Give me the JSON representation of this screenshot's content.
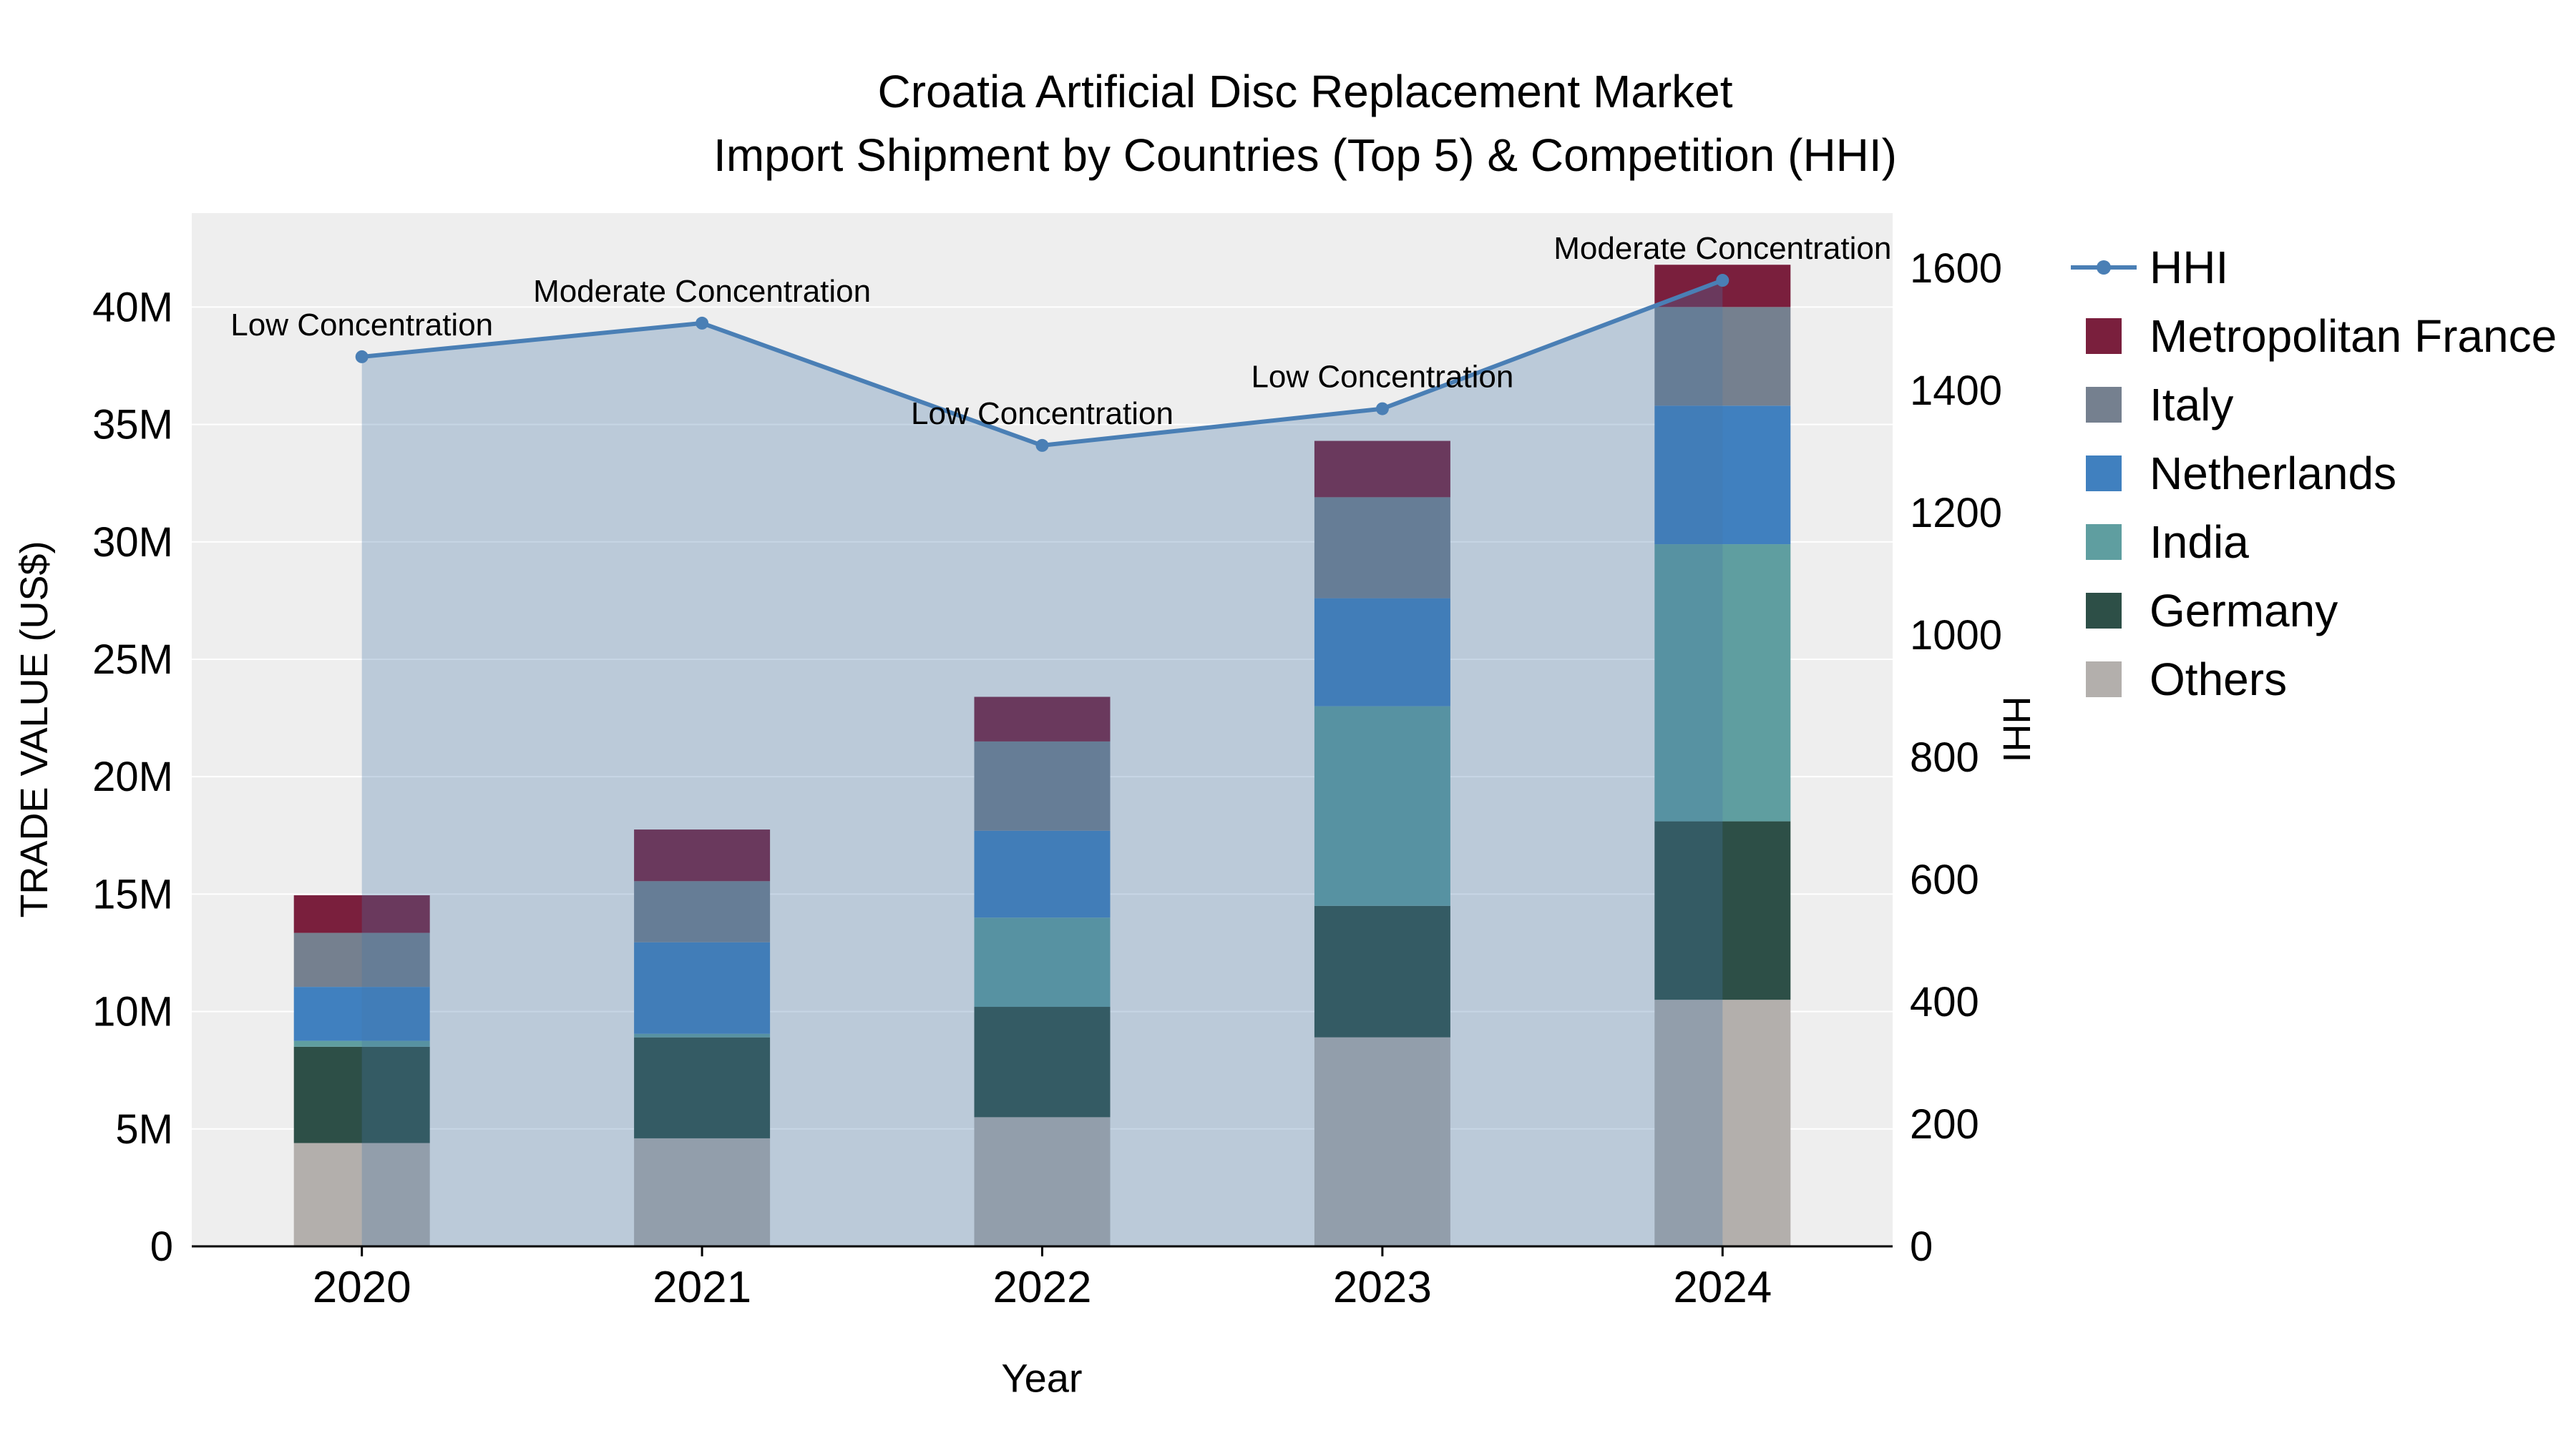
{
  "title": {
    "line1": "Croatia Artificial Disc Replacement Market",
    "line2": "Import Shipment by Countries (Top 5) & Competition (HHI)"
  },
  "axes": {
    "left_label": "TRADE VALUE (US$)",
    "right_label": "HHI",
    "x_label": "Year",
    "left_ticks": [
      "0",
      "5M",
      "10M",
      "15M",
      "20M",
      "25M",
      "30M",
      "35M",
      "40M"
    ],
    "right_ticks": [
      "0",
      "200",
      "400",
      "600",
      "800",
      "1000",
      "1200",
      "1400",
      "1600"
    ]
  },
  "chart_data": {
    "type": "bar",
    "subtype": "stacked-bars-with-hhi-line-and-area",
    "title": "Croatia Artificial Disc Replacement Market Import Shipment by Countries (Top 5) & Competition (HHI)",
    "xlabel": "Year",
    "ylabel": "TRADE VALUE (US$)",
    "y2label": "HHI",
    "plot_bg": "#eeeeee",
    "grid": "on",
    "legend_position": "right",
    "categories": [
      "2020",
      "2021",
      "2022",
      "2023",
      "2024"
    ],
    "stack_order_bottom_to_top": [
      "Others",
      "Germany",
      "India",
      "Netherlands",
      "Italy",
      "Metropolitan France"
    ],
    "series": [
      {
        "name": "Others",
        "color": "#b3afac",
        "values": [
          4.4,
          4.6,
          5.5,
          8.9,
          10.5
        ]
      },
      {
        "name": "Germany",
        "color": "#2d4f47",
        "values": [
          4.1,
          4.3,
          4.7,
          5.6,
          7.6
        ]
      },
      {
        "name": "India",
        "color": "#5f9ea0",
        "values": [
          0.25,
          0.15,
          3.8,
          8.5,
          11.8
        ]
      },
      {
        "name": "Netherlands",
        "color": "#4080bf",
        "values": [
          2.3,
          3.9,
          3.7,
          4.6,
          5.9
        ]
      },
      {
        "name": "Italy",
        "color": "#75808f",
        "values": [
          2.3,
          2.6,
          3.8,
          4.3,
          4.2
        ]
      },
      {
        "name": "Metropolitan France",
        "color": "#7a1f3d",
        "values": [
          1.6,
          2.2,
          1.9,
          2.4,
          1.8
        ]
      }
    ],
    "bar_totals_M": [
      14.95,
      17.75,
      23.4,
      34.3,
      41.8
    ],
    "line_series": {
      "name": "HHI",
      "color": "#4a7fb5",
      "fill_color": "rgba(70,120,170,0.30)",
      "values": [
        1455,
        1510,
        1310,
        1370,
        1580
      ],
      "annotations": [
        "Low Concentration",
        "Moderate Concentration",
        "Low Concentration",
        "Low Concentration",
        "Moderate Concentration"
      ]
    },
    "left_axis": {
      "max": 44,
      "tick_step": 5,
      "unit": "M",
      "range_label": "0-40M"
    },
    "right_axis": {
      "max": 1690,
      "tick_step": 200,
      "range_label": "0-1600"
    }
  },
  "legend": {
    "items": [
      {
        "label": "HHI",
        "type": "line",
        "color": "#4a7fb5"
      },
      {
        "label": "Metropolitan France",
        "type": "square",
        "color": "#7a1f3d"
      },
      {
        "label": "Italy",
        "type": "square",
        "color": "#75808f"
      },
      {
        "label": "Netherlands",
        "type": "square",
        "color": "#4080bf"
      },
      {
        "label": "India",
        "type": "square",
        "color": "#5f9ea0"
      },
      {
        "label": "Germany",
        "type": "square",
        "color": "#2d4f47"
      },
      {
        "label": "Others",
        "type": "square",
        "color": "#b3afac"
      }
    ]
  }
}
